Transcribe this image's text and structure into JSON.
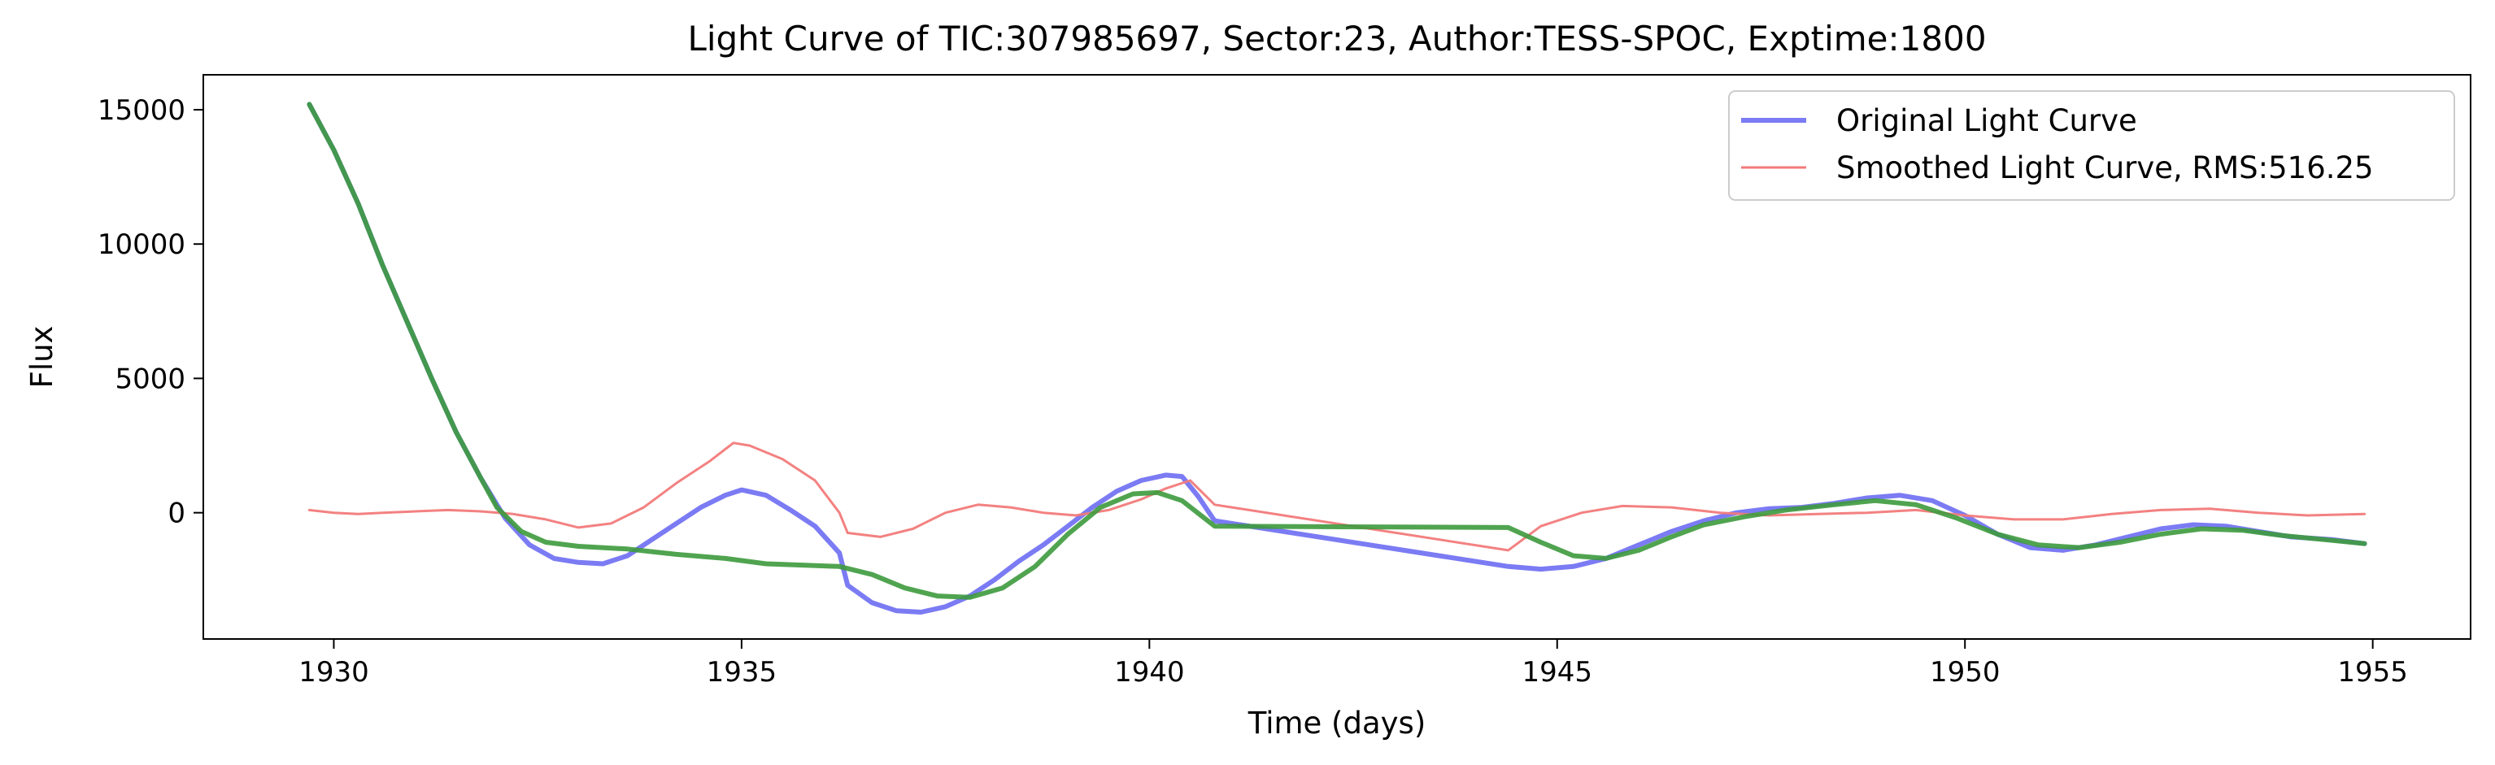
{
  "chart_data": {
    "type": "line",
    "title": "Light Curve of TIC:307985697, Sector:23, Author:TESS-SPOC, Exptime:1800",
    "xlabel": "Time (days)",
    "ylabel": "Flux",
    "xlim": [
      1928.4,
      1956.2
    ],
    "ylim": [
      -4700,
      16300
    ],
    "xticks": [
      1930,
      1935,
      1940,
      1945,
      1950,
      1955
    ],
    "xtick_labels": [
      "1930",
      "1935",
      "1940",
      "1945",
      "1950",
      "1955"
    ],
    "yticks": [
      0,
      5000,
      10000,
      15000
    ],
    "ytick_labels": [
      "0",
      "5000",
      "10000",
      "15000"
    ],
    "grid": false,
    "legend_position": "top-right",
    "series": [
      {
        "name": "Original Light Curve",
        "color": "#7b7bf4",
        "in_legend": true,
        "points": [
          [
            1929.7,
            15200
          ],
          [
            1930.0,
            13500
          ],
          [
            1930.3,
            11500
          ],
          [
            1930.6,
            9200
          ],
          [
            1930.9,
            7100
          ],
          [
            1931.2,
            5000
          ],
          [
            1931.5,
            3000
          ],
          [
            1931.8,
            1300
          ],
          [
            1932.1,
            -200
          ],
          [
            1932.4,
            -1200
          ],
          [
            1932.7,
            -1700
          ],
          [
            1933.0,
            -1850
          ],
          [
            1933.3,
            -1900
          ],
          [
            1933.6,
            -1600
          ],
          [
            1933.9,
            -1000
          ],
          [
            1934.2,
            -400
          ],
          [
            1934.5,
            200
          ],
          [
            1934.8,
            650
          ],
          [
            1935.0,
            850
          ],
          [
            1935.3,
            650
          ],
          [
            1935.6,
            100
          ],
          [
            1935.9,
            -500
          ],
          [
            1936.2,
            -1500
          ],
          [
            1936.3,
            -2700
          ],
          [
            1936.6,
            -3350
          ],
          [
            1936.9,
            -3650
          ],
          [
            1937.2,
            -3700
          ],
          [
            1937.5,
            -3500
          ],
          [
            1937.8,
            -3100
          ],
          [
            1938.1,
            -2500
          ],
          [
            1938.4,
            -1800
          ],
          [
            1938.7,
            -1200
          ],
          [
            1939.0,
            -500
          ],
          [
            1939.3,
            200
          ],
          [
            1939.6,
            800
          ],
          [
            1939.9,
            1200
          ],
          [
            1940.2,
            1400
          ],
          [
            1940.4,
            1350
          ],
          [
            1940.6,
            600
          ],
          [
            1940.8,
            -300
          ],
          [
            1944.4,
            -2000
          ],
          [
            1944.8,
            -2100
          ],
          [
            1945.2,
            -2000
          ],
          [
            1945.6,
            -1700
          ],
          [
            1946.0,
            -1200
          ],
          [
            1946.4,
            -700
          ],
          [
            1946.8,
            -300
          ],
          [
            1947.2,
            0
          ],
          [
            1947.6,
            150
          ],
          [
            1948.0,
            200
          ],
          [
            1948.4,
            350
          ],
          [
            1948.8,
            550
          ],
          [
            1949.2,
            650
          ],
          [
            1949.6,
            450
          ],
          [
            1950.0,
            -100
          ],
          [
            1950.4,
            -800
          ],
          [
            1950.8,
            -1300
          ],
          [
            1951.2,
            -1400
          ],
          [
            1951.6,
            -1200
          ],
          [
            1952.0,
            -900
          ],
          [
            1952.4,
            -600
          ],
          [
            1952.8,
            -450
          ],
          [
            1953.2,
            -500
          ],
          [
            1953.6,
            -700
          ],
          [
            1954.0,
            -900
          ],
          [
            1954.5,
            -1000
          ],
          [
            1954.9,
            -1150
          ]
        ]
      },
      {
        "name": "Smoothed Light Curve, RMS:516.25",
        "color": "#f27a7a",
        "in_legend": true,
        "points": [
          [
            1929.7,
            100
          ],
          [
            1930.0,
            0
          ],
          [
            1930.3,
            -50
          ],
          [
            1930.6,
            0
          ],
          [
            1931.0,
            50
          ],
          [
            1931.4,
            100
          ],
          [
            1931.8,
            50
          ],
          [
            1932.2,
            -50
          ],
          [
            1932.6,
            -250
          ],
          [
            1933.0,
            -550
          ],
          [
            1933.4,
            -400
          ],
          [
            1933.8,
            200
          ],
          [
            1934.2,
            1100
          ],
          [
            1934.6,
            1900
          ],
          [
            1934.9,
            2600
          ],
          [
            1935.1,
            2500
          ],
          [
            1935.5,
            2000
          ],
          [
            1935.9,
            1200
          ],
          [
            1936.2,
            0
          ],
          [
            1936.3,
            -750
          ],
          [
            1936.7,
            -900
          ],
          [
            1937.1,
            -600
          ],
          [
            1937.5,
            0
          ],
          [
            1937.9,
            300
          ],
          [
            1938.3,
            200
          ],
          [
            1938.7,
            0
          ],
          [
            1939.1,
            -100
          ],
          [
            1939.5,
            100
          ],
          [
            1939.9,
            500
          ],
          [
            1940.2,
            900
          ],
          [
            1940.5,
            1200
          ],
          [
            1940.8,
            300
          ],
          [
            1944.4,
            -1400
          ],
          [
            1944.8,
            -500
          ],
          [
            1945.3,
            0
          ],
          [
            1945.8,
            250
          ],
          [
            1946.4,
            200
          ],
          [
            1947.0,
            0
          ],
          [
            1947.6,
            -100
          ],
          [
            1948.2,
            -50
          ],
          [
            1948.8,
            0
          ],
          [
            1949.4,
            100
          ],
          [
            1950.0,
            -100
          ],
          [
            1950.6,
            -250
          ],
          [
            1951.2,
            -250
          ],
          [
            1951.8,
            -50
          ],
          [
            1952.4,
            100
          ],
          [
            1953.0,
            150
          ],
          [
            1953.6,
            0
          ],
          [
            1954.2,
            -100
          ],
          [
            1954.9,
            -50
          ]
        ]
      },
      {
        "name": "",
        "color": "#3d9a3d",
        "in_legend": false,
        "points": [
          [
            1929.7,
            15200
          ],
          [
            1930.0,
            13500
          ],
          [
            1930.3,
            11500
          ],
          [
            1930.6,
            9200
          ],
          [
            1930.9,
            7100
          ],
          [
            1931.2,
            5000
          ],
          [
            1931.5,
            3000
          ],
          [
            1931.8,
            1300
          ],
          [
            1932.0,
            200
          ],
          [
            1932.3,
            -700
          ],
          [
            1932.6,
            -1100
          ],
          [
            1933.0,
            -1250
          ],
          [
            1933.6,
            -1350
          ],
          [
            1934.2,
            -1550
          ],
          [
            1934.8,
            -1700
          ],
          [
            1935.3,
            -1900
          ],
          [
            1936.2,
            -2000
          ],
          [
            1936.6,
            -2300
          ],
          [
            1937.0,
            -2800
          ],
          [
            1937.4,
            -3100
          ],
          [
            1937.8,
            -3150
          ],
          [
            1938.2,
            -2800
          ],
          [
            1938.6,
            -2000
          ],
          [
            1939.0,
            -800
          ],
          [
            1939.4,
            200
          ],
          [
            1939.8,
            700
          ],
          [
            1940.1,
            750
          ],
          [
            1940.4,
            450
          ],
          [
            1940.8,
            -500
          ],
          [
            1944.4,
            -550
          ],
          [
            1944.8,
            -1100
          ],
          [
            1945.2,
            -1600
          ],
          [
            1945.6,
            -1700
          ],
          [
            1946.0,
            -1400
          ],
          [
            1946.4,
            -900
          ],
          [
            1946.8,
            -450
          ],
          [
            1947.3,
            -150
          ],
          [
            1947.8,
            100
          ],
          [
            1948.4,
            300
          ],
          [
            1948.9,
            450
          ],
          [
            1949.4,
            300
          ],
          [
            1949.9,
            -200
          ],
          [
            1950.4,
            -800
          ],
          [
            1950.9,
            -1200
          ],
          [
            1951.4,
            -1300
          ],
          [
            1951.9,
            -1100
          ],
          [
            1952.4,
            -800
          ],
          [
            1952.9,
            -600
          ],
          [
            1953.4,
            -650
          ],
          [
            1953.9,
            -850
          ],
          [
            1954.4,
            -1000
          ],
          [
            1954.9,
            -1150
          ]
        ]
      }
    ]
  }
}
